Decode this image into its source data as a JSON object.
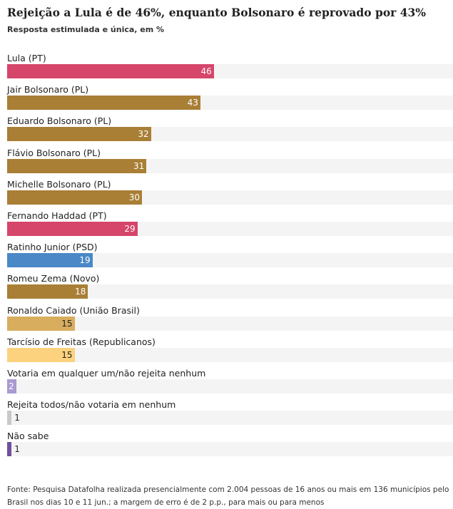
{
  "header": {
    "title": "Rejeição a Lula é de 46%, enquanto Bolsonaro é reprovado por 43%",
    "subtitle": "Resposta estimulada e única, em %"
  },
  "footer": {
    "source": "Fonte: Pesquisa Datafolha realizada presencialmente com 2.004 pessoas de 16 anos ou mais em 136 municípios pelo Brasil nos dias 10 e 11 jun.; a margem de erro é de 2 p.p., para mais ou para menos"
  },
  "chart_data": {
    "type": "bar",
    "orientation": "horizontal",
    "title": "Rejeição a Lula é de 46%, enquanto Bolsonaro é reprovado por 43%",
    "subtitle": "Resposta estimulada e única, em %",
    "xlim": [
      0,
      100
    ],
    "grid": false,
    "categories": [
      "Lula (PT)",
      "Jair Bolsonaro (PL)",
      "Eduardo Bolsonaro (PL)",
      "Flávio Bolsonaro (PL)",
      "Michelle Bolsonaro (PL)",
      "Fernando Haddad (PT)",
      "Ratinho Junior (PSD)",
      "Romeu Zema (Novo)",
      "Ronaldo Caiado (União Brasil)",
      "Tarcísio de Freitas (Republicanos)",
      "Votaria em qualquer um/não rejeita nenhum",
      "Rejeita todos/não votaria em nenhum",
      "Não sabe"
    ],
    "values": [
      46,
      43,
      32,
      31,
      30,
      29,
      19,
      18,
      15,
      15,
      2,
      1,
      1
    ],
    "colors": [
      "#d6456a",
      "#a97f36",
      "#a97f36",
      "#a97f36",
      "#a97f36",
      "#d6456a",
      "#4a88c7",
      "#a97f36",
      "#d8ad5e",
      "#fcd27e",
      "#a99ad0",
      "#c9c9c9",
      "#6f4fa0"
    ],
    "label_colors": [
      "#ffffff",
      "#ffffff",
      "#ffffff",
      "#ffffff",
      "#ffffff",
      "#ffffff",
      "#ffffff",
      "#ffffff",
      "#222222",
      "#222222",
      "#ffffff",
      "#222222",
      "#222222"
    ]
  }
}
